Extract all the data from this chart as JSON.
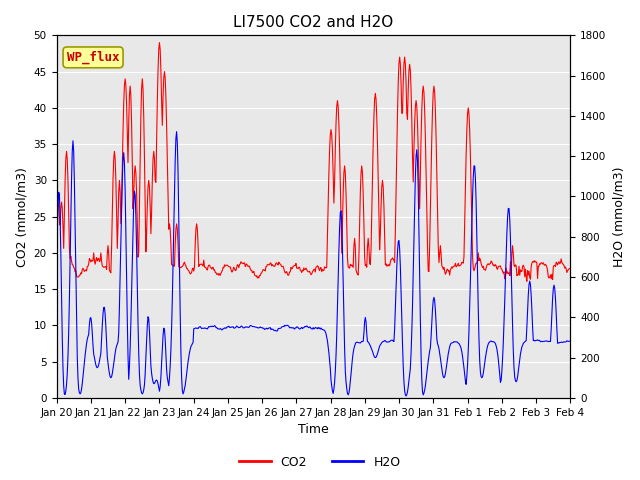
{
  "title": "LI7500 CO2 and H2O",
  "xlabel": "Time",
  "ylabel_left": "CO2 (mmol/m3)",
  "ylabel_right": "H2O (mmol/m3)",
  "ylim_left": [
    0,
    50
  ],
  "ylim_right": [
    0,
    1800
  ],
  "yticks_left": [
    0,
    5,
    10,
    15,
    20,
    25,
    30,
    35,
    40,
    45,
    50
  ],
  "yticks_right": [
    0,
    200,
    400,
    600,
    800,
    1000,
    1200,
    1400,
    1600,
    1800
  ],
  "xtick_labels": [
    "Jan 20",
    "Jan 21",
    "Jan 22",
    "Jan 23",
    "Jan 24",
    "Jan 25",
    "Jan 26",
    "Jan 27",
    "Jan 28",
    "Jan 29",
    "Jan 30",
    "Jan 31",
    "Feb 1",
    "Feb 2",
    "Feb 3",
    "Feb 4"
  ],
  "co2_color": "#FF0000",
  "h2o_color": "#0000FF",
  "line_width": 0.8,
  "bg_color": "#E8E8E8",
  "label_box_text": "WP_flux",
  "label_box_bg": "#FFFF99",
  "label_box_edge": "#999900",
  "label_box_text_color": "#CC0000",
  "title_fontsize": 11,
  "axis_fontsize": 9,
  "tick_fontsize": 7.5
}
